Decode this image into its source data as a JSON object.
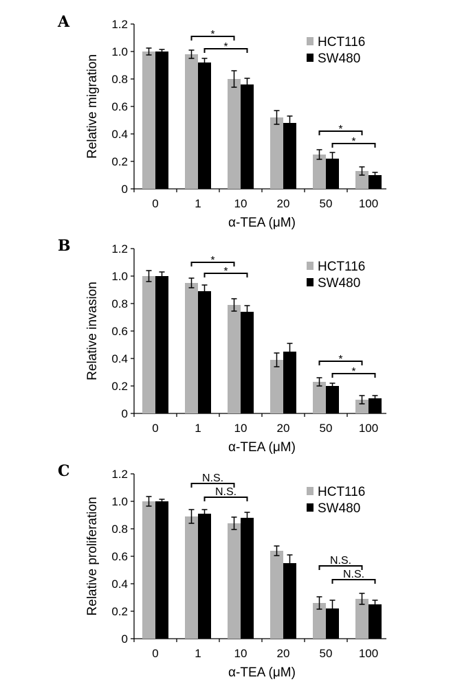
{
  "chart_data": [
    {
      "type": "bar",
      "panel": "A",
      "xlabel": "α-TEA (μM)",
      "ylabel": "Relative migration",
      "ylim": [
        0,
        1.2
      ],
      "yticks": [
        "0",
        "0.2",
        "0.4",
        "0.6",
        "0.8",
        "1.0",
        "1.2"
      ],
      "categories": [
        "0",
        "1",
        "10",
        "20",
        "50",
        "100"
      ],
      "legend_position": "top-right",
      "series": [
        {
          "name": "HCT116",
          "color": "#b3b3b3",
          "values": [
            1.0,
            0.98,
            0.8,
            0.52,
            0.25,
            0.13
          ],
          "errors": [
            0.025,
            0.03,
            0.06,
            0.05,
            0.035,
            0.03
          ]
        },
        {
          "name": "SW480",
          "color": "#000000",
          "values": [
            1.0,
            0.92,
            0.76,
            0.48,
            0.22,
            0.1
          ],
          "errors": [
            0.015,
            0.03,
            0.045,
            0.05,
            0.045,
            0.02
          ]
        }
      ],
      "annotations": [
        {
          "label": "*",
          "from": [
            1,
            0
          ],
          "to": [
            2,
            0
          ],
          "level": 1.11
        },
        {
          "label": "*",
          "from": [
            1,
            1
          ],
          "to": [
            2,
            1
          ],
          "level": 1.02
        },
        {
          "label": "*",
          "from": [
            4,
            0
          ],
          "to": [
            5,
            0
          ],
          "level": 0.42
        },
        {
          "label": "*",
          "from": [
            4,
            1
          ],
          "to": [
            5,
            1
          ],
          "level": 0.33
        }
      ]
    },
    {
      "type": "bar",
      "panel": "B",
      "xlabel": "α-TEA (μM)",
      "ylabel": "Relative invasion",
      "ylim": [
        0,
        1.2
      ],
      "yticks": [
        "0",
        "0.2",
        "0.4",
        "0.6",
        "0.8",
        "1.0",
        "1.2"
      ],
      "categories": [
        "0",
        "1",
        "10",
        "20",
        "50",
        "100"
      ],
      "legend_position": "top-right",
      "series": [
        {
          "name": "HCT116",
          "color": "#b3b3b3",
          "values": [
            1.0,
            0.95,
            0.79,
            0.39,
            0.23,
            0.1
          ],
          "errors": [
            0.04,
            0.035,
            0.045,
            0.05,
            0.03,
            0.03
          ]
        },
        {
          "name": "SW480",
          "color": "#000000",
          "values": [
            1.0,
            0.89,
            0.74,
            0.45,
            0.2,
            0.11
          ],
          "errors": [
            0.03,
            0.045,
            0.045,
            0.06,
            0.02,
            0.02
          ]
        }
      ],
      "annotations": [
        {
          "label": "*",
          "from": [
            1,
            0
          ],
          "to": [
            2,
            0
          ],
          "level": 1.1
        },
        {
          "label": "*",
          "from": [
            1,
            1
          ],
          "to": [
            2,
            1
          ],
          "level": 1.02
        },
        {
          "label": "*",
          "from": [
            4,
            0
          ],
          "to": [
            5,
            0
          ],
          "level": 0.38
        },
        {
          "label": "*",
          "from": [
            4,
            1
          ],
          "to": [
            5,
            1
          ],
          "level": 0.29
        }
      ]
    },
    {
      "type": "bar",
      "panel": "C",
      "xlabel": "α-TEA (μM)",
      "ylabel": "Relative proliferation",
      "ylim": [
        0,
        1.2
      ],
      "yticks": [
        "0",
        "0.2",
        "0.4",
        "0.6",
        "0.8",
        "1.0",
        "1.2"
      ],
      "categories": [
        "0",
        "1",
        "10",
        "20",
        "50",
        "100"
      ],
      "legend_position": "top-right",
      "series": [
        {
          "name": "HCT116",
          "color": "#b3b3b3",
          "values": [
            1.0,
            0.89,
            0.84,
            0.64,
            0.26,
            0.29
          ],
          "errors": [
            0.035,
            0.05,
            0.045,
            0.035,
            0.045,
            0.04
          ]
        },
        {
          "name": "SW480",
          "color": "#000000",
          "values": [
            1.0,
            0.91,
            0.88,
            0.55,
            0.22,
            0.25
          ],
          "errors": [
            0.015,
            0.03,
            0.04,
            0.06,
            0.06,
            0.03
          ]
        }
      ],
      "annotations": [
        {
          "label": "N.S.",
          "from": [
            1,
            0
          ],
          "to": [
            2,
            0
          ],
          "level": 1.13
        },
        {
          "label": "N.S.",
          "from": [
            1,
            1
          ],
          "to": [
            2,
            1
          ],
          "level": 1.03
        },
        {
          "label": "N.S.",
          "from": [
            4,
            0
          ],
          "to": [
            5,
            0
          ],
          "level": 0.53
        },
        {
          "label": "N.S.",
          "from": [
            4,
            1
          ],
          "to": [
            5,
            1
          ],
          "level": 0.43
        }
      ]
    }
  ]
}
